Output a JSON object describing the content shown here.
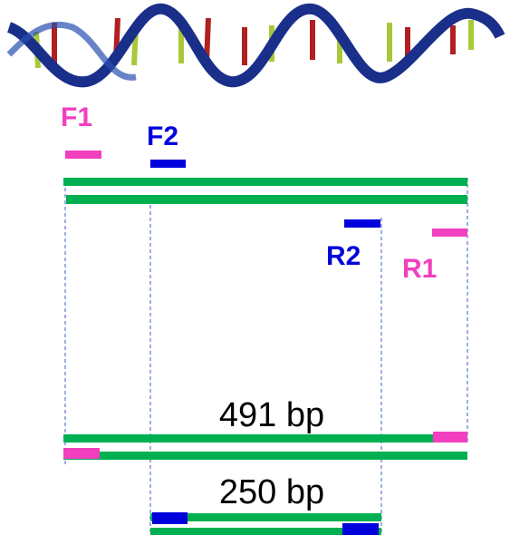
{
  "primers": [
    {
      "label": "F1"
    },
    {
      "label": "F2"
    },
    {
      "label": "R2"
    },
    {
      "label": "R1"
    }
  ],
  "products": [
    {
      "label": "491 bp"
    },
    {
      "label": "250 bp"
    }
  ]
}
